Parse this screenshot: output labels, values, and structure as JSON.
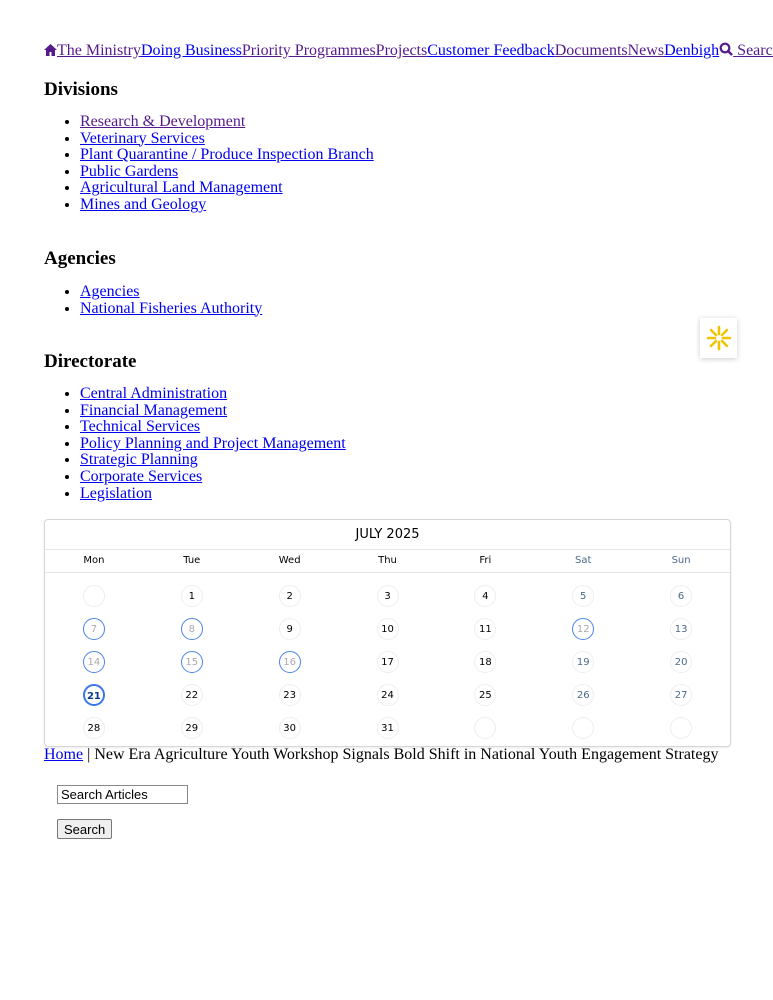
{
  "nav": {
    "items": [
      {
        "label": "The Ministry",
        "icon": "home-icon",
        "visited": true
      },
      {
        "label": "Doing Business"
      },
      {
        "label": "Priority Programmes",
        "visited": true
      },
      {
        "label": "Projects",
        "visited": true
      },
      {
        "label": "Customer Feedback"
      },
      {
        "label": "Documents",
        "visited": true
      },
      {
        "label": "News",
        "visited": true
      },
      {
        "label": "Denbigh"
      }
    ],
    "search_label": "Search"
  },
  "divisions": {
    "title": "Divisions",
    "items": [
      "Research & Development",
      "Veterinary Services",
      "Plant Quarantine / Produce Inspection Branch",
      "Public Gardens",
      "Agricultural Land Management",
      "Mines and Geology"
    ]
  },
  "agencies": {
    "title": "Agencies",
    "items": [
      "Agencies",
      "National Fisheries Authority"
    ]
  },
  "directorate": {
    "title": "Directorate",
    "items": [
      "Central Administration",
      "Financial Management",
      "Technical Services",
      "Policy Planning and Project Management",
      "Strategic Planning",
      "Corporate Services",
      "Legislation"
    ]
  },
  "calendar": {
    "title": "JULY 2025",
    "weekdays": [
      "Mon",
      "Tue",
      "Wed",
      "Thu",
      "Fri",
      "Sat",
      "Sun"
    ],
    "event_days": [
      7,
      8,
      12,
      14,
      15,
      16
    ],
    "today": 21,
    "accent": "#3b78e7",
    "weeks": [
      [
        "",
        "1",
        "2",
        "3",
        "4",
        "5",
        "6"
      ],
      [
        "7",
        "8",
        "9",
        "10",
        "11",
        "12",
        "13"
      ],
      [
        "14",
        "15",
        "16",
        "17",
        "18",
        "19",
        "20"
      ],
      [
        "21",
        "22",
        "23",
        "24",
        "25",
        "26",
        "27"
      ],
      [
        "28",
        "29",
        "30",
        "31",
        "",
        "",
        ""
      ]
    ]
  },
  "breadcrumb": {
    "home": "Home",
    "separator": " | ",
    "current": "New Era Agriculture Youth Workshop Signals Bold Shift in National Youth Engagement Strategy"
  },
  "search": {
    "value": "Search Articles",
    "button": "Search"
  }
}
